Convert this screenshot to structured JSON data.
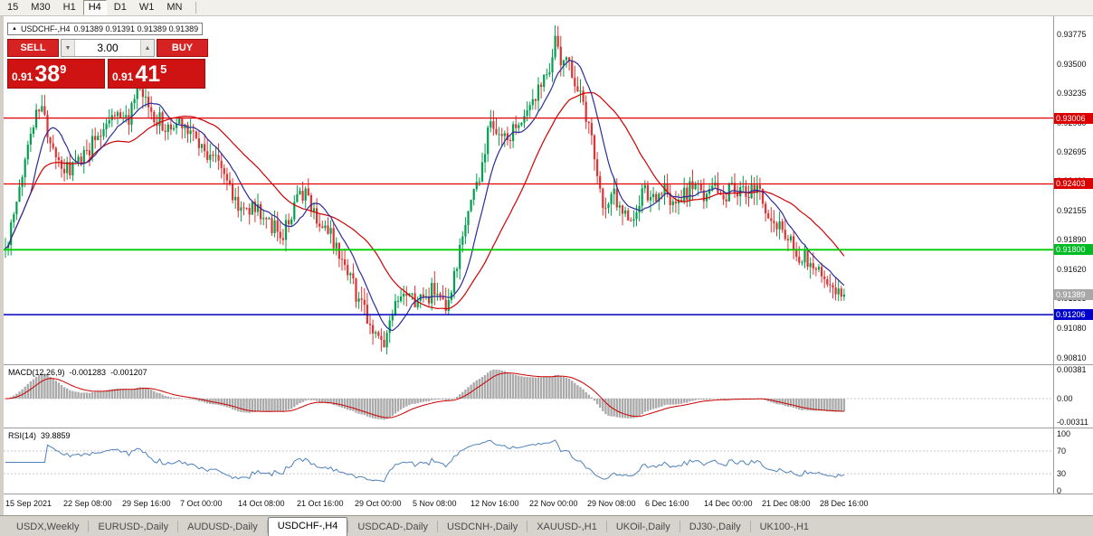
{
  "toolbar": {
    "timeframes": [
      {
        "label": "15",
        "active": false
      },
      {
        "label": "M30",
        "active": false
      },
      {
        "label": "H1",
        "active": false
      },
      {
        "label": "H4",
        "active": true
      },
      {
        "label": "D1",
        "active": false
      },
      {
        "label": "W1",
        "active": false
      },
      {
        "label": "MN",
        "active": false
      }
    ]
  },
  "chart_header": {
    "marker": "▲",
    "symbol": "USDCHF-,H4",
    "ohlc": "0.91389 0.91391 0.91389 0.91389"
  },
  "trade_panel": {
    "sell_label": "SELL",
    "buy_label": "BUY",
    "volume": "3.00",
    "vol_down_icon": "▼",
    "vol_up_icon": "▲",
    "bid": {
      "prefix": "0.91",
      "big": "38",
      "sup": "9"
    },
    "ask": {
      "prefix": "0.91",
      "big": "41",
      "sup": "5"
    }
  },
  "price_axis": {
    "ticks": [
      "0.93775",
      "0.93500",
      "0.93235",
      "0.92960",
      "0.92695",
      "0.92430",
      "0.92155",
      "0.91890",
      "0.91620",
      "0.91355",
      "0.91080",
      "0.90810"
    ],
    "badges": [
      {
        "label": "0.93006",
        "price": 0.93006,
        "bg": "#dd0000",
        "fg": "#ffffff"
      },
      {
        "label": "0.92403",
        "price": 0.92403,
        "bg": "#dd0000",
        "fg": "#ffffff"
      },
      {
        "label": "0.91800",
        "price": 0.918,
        "bg": "#00bb22",
        "fg": "#ffffff"
      },
      {
        "label": "0.91389",
        "price": 0.91389,
        "bg": "#a8a8a8",
        "fg": "#ffffff"
      },
      {
        "label": "0.91206",
        "price": 0.91206,
        "bg": "#0000cc",
        "fg": "#ffffff"
      }
    ]
  },
  "indicators": {
    "macd": {
      "label": "MACD(12,26,9)",
      "value_main": "-0.001283",
      "value_signal": "-0.001207",
      "axis": [
        "0.00381",
        "0.00",
        "-0.00311"
      ]
    },
    "rsi": {
      "label": "RSI(14)",
      "value": "39.8859",
      "axis": [
        "100",
        "70",
        "30",
        "0"
      ]
    }
  },
  "time_axis": [
    "15 Sep 2021",
    "22 Sep 08:00",
    "29 Sep 16:00",
    "7 Oct 00:00",
    "14 Oct 08:00",
    "21 Oct 16:00",
    "29 Oct 00:00",
    "5 Nov 08:00",
    "12 Nov 16:00",
    "22 Nov 00:00",
    "29 Nov 08:00",
    "6 Dec 16:00",
    "14 Dec 00:00",
    "21 Dec 08:00",
    "28 Dec 16:00"
  ],
  "tabs": [
    {
      "label": "USDX,Weekly",
      "active": false
    },
    {
      "label": "EURUSD-,Daily",
      "active": false
    },
    {
      "label": "AUDUSD-,Daily",
      "active": false
    },
    {
      "label": "USDCHF-,H4",
      "active": true
    },
    {
      "label": "USDCAD-,Daily",
      "active": false
    },
    {
      "label": "USDCNH-,Daily",
      "active": false
    },
    {
      "label": "XAUUSD-,H1",
      "active": false
    },
    {
      "label": "UKOil-,Daily",
      "active": false
    },
    {
      "label": "DJ30-,Daily",
      "active": false
    },
    {
      "label": "UK100-,H1",
      "active": false
    }
  ],
  "chart_data": {
    "type": "candlestick",
    "symbol": "USDCHF",
    "timeframe": "H4",
    "last_close": 0.91389,
    "price_range": [
      0.9076,
      0.9388
    ],
    "candle_count": 300,
    "hlines": [
      {
        "price": 0.93006,
        "color": "#e00000",
        "width": 1.3
      },
      {
        "price": 0.92403,
        "color": "#e00000",
        "width": 1.3
      },
      {
        "price": 0.918,
        "color": "#00cc00",
        "width": 1.8
      },
      {
        "price": 0.91206,
        "color": "#0000bb",
        "width": 1.5
      }
    ],
    "macd_axis_range": {
      "top": 0.00381,
      "zero": 0.0,
      "bottom": -0.00311
    },
    "rsi_levels": [
      70,
      30
    ],
    "colors": {
      "up": "#00a04c",
      "down": "#e03232",
      "ma_fast": "#2b2b9b",
      "ma_slow": "#d00000",
      "macd_hist": "#ababab",
      "macd_signal": "#cc0000",
      "rsi": "#4f81bd",
      "grid_dotted": "#c8c8c8",
      "separator": "#9c9c9c"
    },
    "price_anchors": [
      [
        0.0,
        0.918
      ],
      [
        0.012,
        0.9215
      ],
      [
        0.03,
        0.929
      ],
      [
        0.042,
        0.9313
      ],
      [
        0.055,
        0.927
      ],
      [
        0.075,
        0.9248
      ],
      [
        0.095,
        0.927
      ],
      [
        0.115,
        0.9292
      ],
      [
        0.13,
        0.9306
      ],
      [
        0.145,
        0.9298
      ],
      [
        0.16,
        0.9326
      ],
      [
        0.175,
        0.9302
      ],
      [
        0.195,
        0.9288
      ],
      [
        0.21,
        0.93
      ],
      [
        0.225,
        0.9284
      ],
      [
        0.242,
        0.9268
      ],
      [
        0.258,
        0.9258
      ],
      [
        0.272,
        0.9228
      ],
      [
        0.286,
        0.9214
      ],
      [
        0.3,
        0.922
      ],
      [
        0.315,
        0.9204
      ],
      [
        0.33,
        0.919
      ],
      [
        0.345,
        0.9222
      ],
      [
        0.36,
        0.9232
      ],
      [
        0.378,
        0.92
      ],
      [
        0.395,
        0.9186
      ],
      [
        0.412,
        0.9158
      ],
      [
        0.428,
        0.912
      ],
      [
        0.442,
        0.9102
      ],
      [
        0.452,
        0.9092
      ],
      [
        0.465,
        0.9128
      ],
      [
        0.48,
        0.9138
      ],
      [
        0.498,
        0.9134
      ],
      [
        0.512,
        0.9142
      ],
      [
        0.526,
        0.912
      ],
      [
        0.54,
        0.917
      ],
      [
        0.554,
        0.9225
      ],
      [
        0.566,
        0.9248
      ],
      [
        0.578,
        0.9296
      ],
      [
        0.59,
        0.9284
      ],
      [
        0.602,
        0.9282
      ],
      [
        0.616,
        0.9302
      ],
      [
        0.63,
        0.9322
      ],
      [
        0.644,
        0.9344
      ],
      [
        0.655,
        0.9366
      ],
      [
        0.664,
        0.9358
      ],
      [
        0.672,
        0.935
      ],
      [
        0.682,
        0.9328
      ],
      [
        0.692,
        0.9306
      ],
      [
        0.7,
        0.9278
      ],
      [
        0.708,
        0.924
      ],
      [
        0.714,
        0.9212
      ],
      [
        0.724,
        0.9232
      ],
      [
        0.736,
        0.9216
      ],
      [
        0.748,
        0.9202
      ],
      [
        0.76,
        0.9236
      ],
      [
        0.772,
        0.9222
      ],
      [
        0.784,
        0.9236
      ],
      [
        0.796,
        0.9218
      ],
      [
        0.808,
        0.9228
      ],
      [
        0.82,
        0.9242
      ],
      [
        0.832,
        0.923
      ],
      [
        0.844,
        0.924
      ],
      [
        0.856,
        0.9226
      ],
      [
        0.868,
        0.9236
      ],
      [
        0.88,
        0.923
      ],
      [
        0.895,
        0.9236
      ],
      [
        0.91,
        0.9214
      ],
      [
        0.925,
        0.9196
      ],
      [
        0.94,
        0.918
      ],
      [
        0.955,
        0.9168
      ],
      [
        0.97,
        0.9158
      ],
      [
        0.985,
        0.9148
      ],
      [
        1.0,
        0.9139
      ]
    ]
  }
}
